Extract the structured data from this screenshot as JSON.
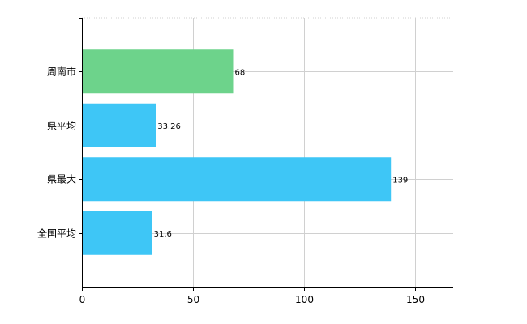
{
  "chart_data": {
    "type": "bar",
    "orientation": "horizontal",
    "categories": [
      "周南市",
      "県平均",
      "県最大",
      "全国平均"
    ],
    "values": [
      68,
      33.26,
      139,
      31.6
    ],
    "data_labels": [
      "68",
      "33.26",
      "139",
      "31.6"
    ],
    "bar_colors": [
      "#6dd38b",
      "#3ec6f6",
      "#3ec6f6",
      "#3ec6f6"
    ],
    "xlim": [
      0,
      167
    ],
    "xticks": [
      0,
      50,
      100,
      150
    ],
    "xtick_labels": [
      "0",
      "50",
      "100",
      "150"
    ],
    "grid": true
  }
}
